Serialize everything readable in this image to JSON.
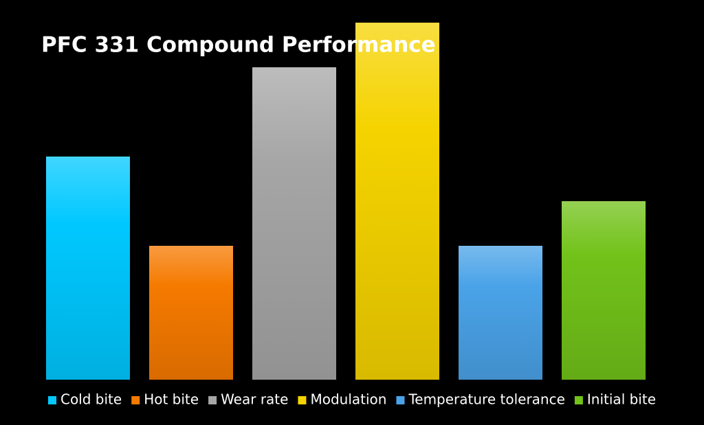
{
  "chart_data": {
    "type": "bar",
    "title": "PFC 331 Compound Performance",
    "series": [
      {
        "name": "Cold bite",
        "color": "#00c8ff",
        "values": [
          5
        ]
      },
      {
        "name": "Hot bite",
        "color": "#f57a00",
        "values": [
          3
        ]
      },
      {
        "name": "Wear rate",
        "color": "#a6a6a6",
        "values": [
          7
        ]
      },
      {
        "name": "Modulation",
        "color": "#f5d300",
        "values": [
          8
        ]
      },
      {
        "name": "Temperature tolerance",
        "color": "#4aa3e8",
        "values": [
          3
        ]
      },
      {
        "name": "Initial bite",
        "color": "#72c21a",
        "values": [
          4
        ]
      }
    ],
    "ylim": [
      0,
      8
    ],
    "legend": "bottom"
  }
}
